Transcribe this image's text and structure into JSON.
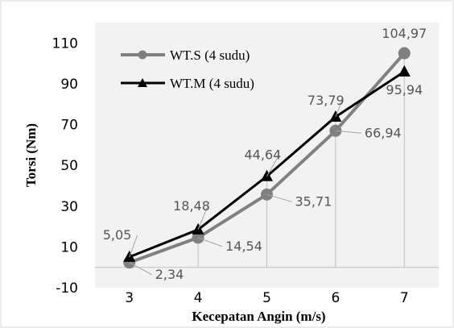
{
  "chart_data": {
    "type": "line",
    "categories": [
      "3",
      "4",
      "5",
      "6",
      "7"
    ],
    "x": [
      3,
      4,
      5,
      6,
      7
    ],
    "series": [
      {
        "name": "WT.S (4 sudu)",
        "values": [
          2.34,
          14.54,
          35.71,
          66.94,
          104.97
        ],
        "labels": [
          "2,34",
          "14,54",
          "35,71",
          "66,94",
          "104,97"
        ],
        "color": "#808080",
        "marker": "circle"
      },
      {
        "name": "WT.M (4 sudu)",
        "values": [
          5.05,
          18.48,
          44.64,
          73.79,
          95.94
        ],
        "labels": [
          "5,05",
          "18,48",
          "44,64",
          "73,79",
          "95,94"
        ],
        "color": "#000000",
        "marker": "triangle"
      }
    ],
    "yticks": [
      "-10",
      "10",
      "30",
      "50",
      "70",
      "90",
      "110"
    ],
    "ylim": [
      -10,
      120
    ],
    "xlabel": "Kecepatan Angin (m/s)",
    "ylabel": "Torsi (Nm)",
    "legend_position": "top-left",
    "grid": false,
    "drop_lines": true
  }
}
